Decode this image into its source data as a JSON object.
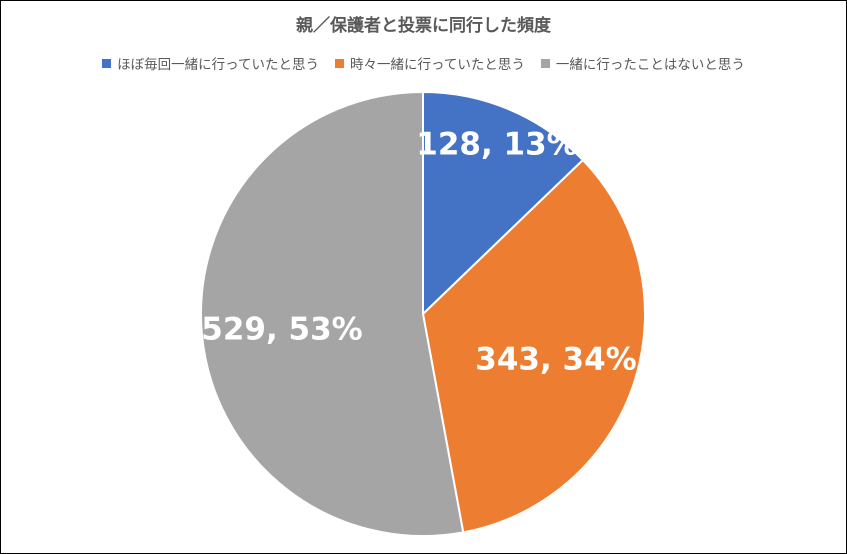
{
  "chart_data": {
    "type": "pie",
    "title": "親／保護者と投票に同行した頻度",
    "legend_position": "top",
    "categories": [
      "ほぼ毎回一緒に行っていたと思う",
      "時々一緒に行っていたと思う",
      "一緒に行ったことはないと思う"
    ],
    "values": [
      128,
      343,
      529
    ],
    "percents": [
      "13%",
      "34%",
      "53%"
    ],
    "labels": [
      "128, 13%",
      "343, 34%",
      "529, 53%"
    ],
    "colors": [
      "#4472C4",
      "#ED7D31",
      "#A5A5A5"
    ]
  }
}
